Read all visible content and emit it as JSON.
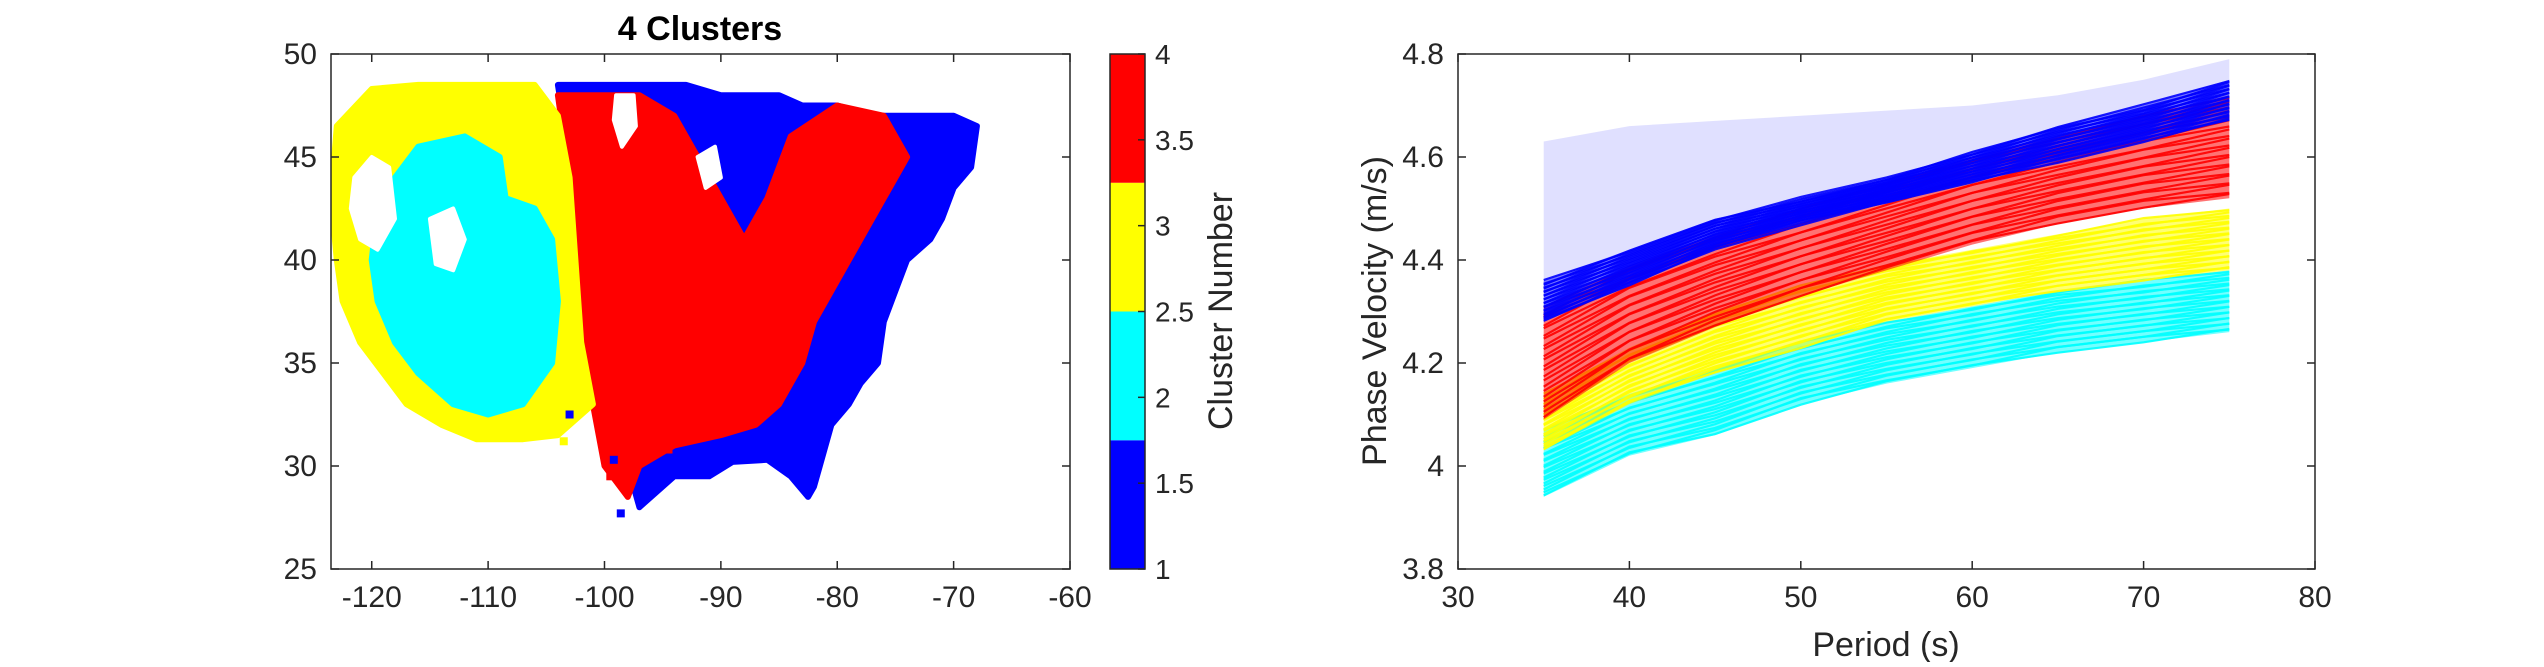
{
  "chart_data": [
    {
      "type": "heatmap",
      "title": "4 Clusters",
      "xlabel": "",
      "ylabel": "",
      "xlim": [
        -123.5,
        -60
      ],
      "ylim": [
        25,
        50
      ],
      "xticks": [
        -120,
        -110,
        -100,
        -90,
        -80,
        -70,
        -60
      ],
      "yticks": [
        25,
        30,
        35,
        40,
        45,
        50
      ],
      "grid": false,
      "colorbar": {
        "label": "Cluster Number",
        "range": [
          1,
          4
        ],
        "ticks": [
          1,
          1.5,
          2,
          2.5,
          3,
          3.5,
          4
        ],
        "colors": [
          "#0000ff",
          "#00ffff",
          "#ffff00",
          "#ff0000"
        ]
      },
      "regions": [
        {
          "cluster": 1,
          "color": "#0000ff",
          "polygon": [
            [
              -104,
              48.5
            ],
            [
              -97,
              48.5
            ],
            [
              -93,
              48.5
            ],
            [
              -90,
              48
            ],
            [
              -85,
              48
            ],
            [
              -83,
              47.5
            ],
            [
              -80,
              47.5
            ],
            [
              -77,
              47
            ],
            [
              -73,
              47
            ],
            [
              -70,
              47
            ],
            [
              -68,
              46.5
            ],
            [
              -68.5,
              44.5
            ],
            [
              -70,
              43.5
            ],
            [
              -71,
              42
            ],
            [
              -72,
              41
            ],
            [
              -74,
              40
            ],
            [
              -75,
              38.5
            ],
            [
              -76,
              37
            ],
            [
              -76.5,
              35
            ],
            [
              -78,
              34
            ],
            [
              -79,
              33
            ],
            [
              -80.5,
              32
            ],
            [
              -81,
              31
            ],
            [
              -81.5,
              30
            ],
            [
              -82,
              29
            ],
            [
              -82.5,
              28.5
            ],
            [
              -84,
              29.5
            ],
            [
              -86,
              30.3
            ],
            [
              -89,
              30.2
            ],
            [
              -91,
              29.5
            ],
            [
              -94,
              29.5
            ],
            [
              -97,
              28
            ],
            [
              -98,
              30
            ],
            [
              -99,
              32
            ],
            [
              -100,
              34
            ],
            [
              -101,
              36
            ],
            [
              -102,
              38
            ],
            [
              -102.5,
              42
            ],
            [
              -103,
              45
            ]
          ]
        },
        {
          "cluster": 4,
          "color": "#ff0000",
          "polygon": [
            [
              -104,
              48
            ],
            [
              -97,
              48
            ],
            [
              -94,
              47
            ],
            [
              -92,
              45
            ],
            [
              -90,
              43
            ],
            [
              -88,
              41
            ],
            [
              -86,
              43
            ],
            [
              -84,
              46
            ],
            [
              -80,
              47.5
            ],
            [
              -76,
              47
            ],
            [
              -74,
              45
            ],
            [
              -76,
              43
            ],
            [
              -78,
              41
            ],
            [
              -80,
              39
            ],
            [
              -82,
              37
            ],
            [
              -83,
              35
            ],
            [
              -85,
              33
            ],
            [
              -87,
              32
            ],
            [
              -90,
              31.5
            ],
            [
              -94,
              31
            ],
            [
              -97,
              30
            ],
            [
              -98,
              28.5
            ],
            [
              -100,
              30
            ],
            [
              -101,
              33
            ],
            [
              -102,
              36
            ],
            [
              -102.5,
              40
            ],
            [
              -103,
              44
            ]
          ]
        },
        {
          "cluster": 3,
          "color": "#ffff00",
          "polygon": [
            [
              -123,
              46.5
            ],
            [
              -120,
              48.3
            ],
            [
              -116,
              48.5
            ],
            [
              -111,
              48.5
            ],
            [
              -106,
              48.5
            ],
            [
              -104,
              47
            ],
            [
              -103,
              44
            ],
            [
              -102.5,
              40
            ],
            [
              -102,
              36
            ],
            [
              -101,
              33
            ],
            [
              -104,
              31.5
            ],
            [
              -107,
              31.3
            ],
            [
              -111,
              31.3
            ],
            [
              -114,
              32
            ],
            [
              -117,
              33
            ],
            [
              -119,
              34.5
            ],
            [
              -121,
              36
            ],
            [
              -122.5,
              38
            ],
            [
              -123,
              40
            ],
            [
              -123.5,
              43
            ]
          ]
        },
        {
          "cluster": 2,
          "color": "#00ffff",
          "polygon": [
            [
              -118,
              44
            ],
            [
              -116,
              45.5
            ],
            [
              -112,
              46
            ],
            [
              -109,
              45
            ],
            [
              -108.5,
              43
            ],
            [
              -106,
              42.5
            ],
            [
              -104.5,
              41
            ],
            [
              -104,
              38
            ],
            [
              -104.5,
              35
            ],
            [
              -107,
              33
            ],
            [
              -110,
              32.5
            ],
            [
              -113,
              33
            ],
            [
              -116,
              34.5
            ],
            [
              -118,
              36
            ],
            [
              -119.5,
              38
            ],
            [
              -120,
              40
            ],
            [
              -119.5,
              42.5
            ]
          ]
        }
      ],
      "gaps": [
        {
          "polygon": [
            [
              -121.5,
              44
            ],
            [
              -120,
              45
            ],
            [
              -118.5,
              44.5
            ],
            [
              -118,
              42
            ],
            [
              -119.5,
              40.5
            ],
            [
              -121,
              41
            ],
            [
              -121.8,
              42.5
            ]
          ]
        },
        {
          "polygon": [
            [
              -115,
              42
            ],
            [
              -113,
              42.5
            ],
            [
              -112,
              41
            ],
            [
              -113,
              39.5
            ],
            [
              -114.5,
              39.8
            ]
          ]
        },
        {
          "polygon": [
            [
              -99,
              48
            ],
            [
              -97.5,
              48
            ],
            [
              -97.3,
              46.5
            ],
            [
              -98.5,
              45.5
            ],
            [
              -99.2,
              46.8
            ]
          ]
        },
        {
          "polygon": [
            [
              -92,
              45
            ],
            [
              -90.5,
              45.5
            ],
            [
              -90,
              44
            ],
            [
              -91.3,
              43.5
            ]
          ]
        }
      ],
      "outliers": [
        {
          "cluster": 1,
          "x": -98.6,
          "y": 27.7
        },
        {
          "cluster": 4,
          "x": -99.5,
          "y": 29.5
        },
        {
          "cluster": 1,
          "x": -99.2,
          "y": 30.3
        },
        {
          "cluster": 4,
          "x": -94.5,
          "y": 30.8
        },
        {
          "cluster": 1,
          "x": -88.5,
          "y": 47.5
        },
        {
          "cluster": 3,
          "x": -103.5,
          "y": 31.2
        },
        {
          "cluster": 1,
          "x": -103,
          "y": 32.5
        }
      ]
    },
    {
      "type": "line",
      "title": "",
      "xlabel": "Period (s)",
      "ylabel": "Phase Velocity (m/s)",
      "xlim": [
        30,
        80
      ],
      "ylim": [
        3.8,
        4.8
      ],
      "xticks": [
        30,
        40,
        50,
        60,
        70,
        80
      ],
      "yticks": [
        3.8,
        4,
        4.2,
        4.4,
        4.6,
        4.8
      ],
      "grid": false,
      "x": [
        35,
        40,
        45,
        50,
        55,
        60,
        65,
        70,
        75
      ],
      "series": [
        {
          "cluster": 2,
          "color": "#00ffff",
          "lower": [
            3.94,
            4.02,
            4.06,
            4.12,
            4.16,
            4.19,
            4.22,
            4.24,
            4.26
          ],
          "upper": [
            4.07,
            4.14,
            4.19,
            4.24,
            4.28,
            4.31,
            4.34,
            4.36,
            4.38
          ]
        },
        {
          "cluster": 3,
          "color": "#ffff00",
          "lower": [
            4.03,
            4.12,
            4.18,
            4.23,
            4.28,
            4.31,
            4.34,
            4.36,
            4.38
          ],
          "upper": [
            4.14,
            4.23,
            4.3,
            4.35,
            4.39,
            4.42,
            4.45,
            4.48,
            4.5
          ]
        },
        {
          "cluster": 4,
          "color": "#ff0000",
          "lower": [
            4.09,
            4.2,
            4.27,
            4.33,
            4.38,
            4.43,
            4.47,
            4.5,
            4.52
          ],
          "upper": [
            4.31,
            4.39,
            4.45,
            4.5,
            4.55,
            4.6,
            4.64,
            4.68,
            4.72
          ]
        },
        {
          "cluster": 1,
          "color": "#0000ff",
          "lower": [
            4.28,
            4.35,
            4.42,
            4.47,
            4.51,
            4.55,
            4.59,
            4.63,
            4.67
          ],
          "upper": [
            4.36,
            4.42,
            4.48,
            4.52,
            4.56,
            4.61,
            4.66,
            4.7,
            4.75
          ]
        }
      ],
      "faint_upper": [
        4.63,
        4.66,
        4.67,
        4.68,
        4.69,
        4.7,
        4.72,
        4.75,
        4.79
      ]
    }
  ]
}
